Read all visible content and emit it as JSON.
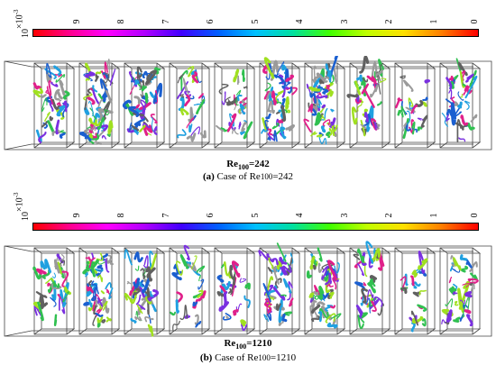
{
  "panels": [
    {
      "id": "a",
      "exponent_base": "×10",
      "exponent_power": "-3",
      "colorbar_max": "10",
      "tick_labels": [
        "9",
        "8",
        "7",
        "6",
        "5",
        "4",
        "3",
        "2",
        "1",
        "0"
      ],
      "flow_label_prefix": "Re",
      "flow_label_sub": "100",
      "flow_label_value": "=242",
      "caption_letter": "(a)",
      "caption_text": " Case of Re",
      "caption_sub": "100",
      "caption_value": "=242"
    },
    {
      "id": "b",
      "exponent_base": "×10",
      "exponent_power": "-3",
      "colorbar_max": "10",
      "tick_labels": [
        "9",
        "8",
        "7",
        "6",
        "5",
        "4",
        "3",
        "2",
        "1",
        "0"
      ],
      "flow_label_prefix": "Re",
      "flow_label_sub": "100",
      "flow_label_value": "=1210",
      "caption_letter": "(b)",
      "caption_text": " Case of Re",
      "caption_sub": "100",
      "caption_value": "=1210"
    }
  ],
  "colorbar_gradient": [
    "#ff0000",
    "#ff0090",
    "#ff00ff",
    "#b000ff",
    "#4000ff",
    "#0060ff",
    "#00c0ff",
    "#00e0a0",
    "#40ff00",
    "#c0ff00",
    "#ffe000",
    "#ff8000",
    "#ff0000"
  ],
  "structure_colors": [
    "#e0208a",
    "#1a5fd0",
    "#7a30e0",
    "#30c050",
    "#a0e020",
    "#20a0e0",
    "#9a9a9a",
    "#606060"
  ]
}
